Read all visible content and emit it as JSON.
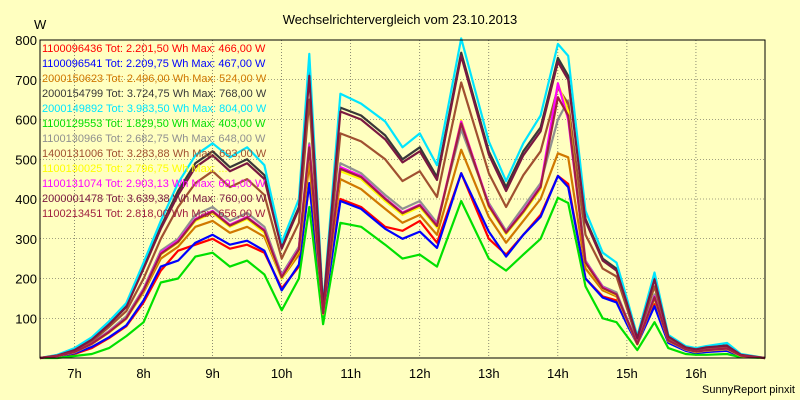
{
  "chart_data": {
    "type": "line",
    "title": "Wechselrichtervergleich vom 23.10.2013",
    "ylabel": "W",
    "ylim": [
      0,
      800
    ],
    "yticks": [
      100,
      200,
      300,
      400,
      500,
      600,
      700,
      800
    ],
    "xlim": [
      6.5,
      17.0
    ],
    "xticks": [
      7,
      8,
      9,
      10,
      11,
      12,
      13,
      14,
      15,
      16
    ],
    "xtick_labels": [
      "7h",
      "8h",
      "9h",
      "10h",
      "11h",
      "12h",
      "13h",
      "14h",
      "15h",
      "16h"
    ],
    "grid": true,
    "legend_position": "top-left",
    "footer": "SunnyReport pinxit",
    "x": [
      6.5,
      6.75,
      7.0,
      7.25,
      7.5,
      7.75,
      8.0,
      8.25,
      8.5,
      8.75,
      9.0,
      9.25,
      9.5,
      9.75,
      10.0,
      10.25,
      10.4,
      10.6,
      10.85,
      11.15,
      11.5,
      11.75,
      12.0,
      12.25,
      12.6,
      13.0,
      13.25,
      13.5,
      13.75,
      14.0,
      14.15,
      14.4,
      14.65,
      14.85,
      15.0,
      15.15,
      15.4,
      15.6,
      15.85,
      16.0,
      16.15,
      16.45,
      16.65,
      17.0
    ],
    "series": [
      {
        "name": "1100096436 Tot: 2.201,50 Wh Max: 466,00 W",
        "color": "#ff0000",
        "values": [
          0,
          3,
          10,
          25,
          50,
          80,
          140,
          220,
          270,
          285,
          300,
          275,
          285,
          265,
          175,
          230,
          440,
          110,
          400,
          380,
          330,
          320,
          345,
          290,
          465,
          300,
          260,
          310,
          360,
          458,
          438,
          200,
          155,
          145,
          90,
          40,
          135,
          40,
          20,
          15,
          18,
          20,
          5,
          0
        ]
      },
      {
        "name": "1100096541 Tot: 2.209,75 Wh Max: 467,00 W",
        "color": "#0000ff",
        "values": [
          0,
          4,
          12,
          28,
          52,
          82,
          145,
          230,
          245,
          290,
          310,
          285,
          295,
          270,
          170,
          235,
          440,
          105,
          395,
          375,
          325,
          300,
          318,
          277,
          465,
          318,
          255,
          310,
          355,
          458,
          430,
          200,
          152,
          140,
          85,
          35,
          130,
          38,
          18,
          12,
          15,
          18,
          4,
          0
        ]
      },
      {
        "name": "2000150623 Tot: 2.496,00 Wh Max: 524,00 W",
        "color": "#d07800",
        "values": [
          0,
          5,
          15,
          35,
          65,
          100,
          165,
          250,
          280,
          330,
          345,
          315,
          330,
          305,
          200,
          260,
          490,
          110,
          450,
          425,
          375,
          340,
          360,
          310,
          524,
          355,
          290,
          345,
          400,
          515,
          505,
          225,
          170,
          155,
          95,
          35,
          150,
          42,
          22,
          15,
          18,
          22,
          5,
          0
        ]
      },
      {
        "name": "2000154799 Tot: 3.724,75 Wh Max: 768,00 W",
        "color": "#383838",
        "values": [
          0,
          6,
          20,
          48,
          85,
          130,
          230,
          330,
          420,
          490,
          520,
          480,
          500,
          460,
          280,
          380,
          720,
          125,
          630,
          610,
          560,
          500,
          530,
          455,
          768,
          520,
          430,
          520,
          580,
          755,
          710,
          350,
          250,
          225,
          140,
          50,
          200,
          55,
          28,
          22,
          28,
          32,
          8,
          0
        ]
      },
      {
        "name": "2000149892 Tot: 3.983,50 Wh Max: 804,00 W",
        "color": "#00e5ff",
        "values": [
          0,
          8,
          25,
          52,
          92,
          138,
          240,
          345,
          440,
          510,
          540,
          505,
          530,
          485,
          290,
          400,
          765,
          130,
          665,
          640,
          595,
          530,
          565,
          485,
          804,
          545,
          445,
          540,
          610,
          790,
          760,
          370,
          265,
          240,
          150,
          55,
          215,
          58,
          30,
          25,
          30,
          38,
          10,
          0
        ]
      },
      {
        "name": "1100129553 Tot: 1.829,50 Wh Max: 403,00 W",
        "color": "#00e000",
        "values": [
          0,
          0,
          5,
          10,
          25,
          55,
          90,
          190,
          200,
          255,
          265,
          230,
          245,
          210,
          120,
          200,
          380,
          85,
          340,
          330,
          285,
          250,
          260,
          230,
          395,
          250,
          220,
          260,
          300,
          403,
          390,
          180,
          100,
          90,
          55,
          20,
          90,
          25,
          10,
          8,
          8,
          10,
          2,
          0
        ]
      },
      {
        "name": "1100130966 Tot: 2.682,75 Wh Max: 648,00 W",
        "color": "#909090",
        "values": [
          0,
          5,
          15,
          38,
          68,
          105,
          175,
          270,
          300,
          360,
          380,
          345,
          365,
          330,
          210,
          280,
          540,
          115,
          490,
          465,
          410,
          375,
          395,
          340,
          575,
          390,
          320,
          380,
          440,
          600,
          648,
          245,
          180,
          165,
          100,
          38,
          160,
          45,
          22,
          16,
          20,
          24,
          6,
          0
        ]
      },
      {
        "name": "1400131006 Tot: 3.283,88 Wh Max: 693,00 W",
        "color": "#a05030",
        "values": [
          0,
          6,
          18,
          42,
          78,
          118,
          200,
          300,
          380,
          440,
          470,
          430,
          450,
          410,
          250,
          340,
          650,
          120,
          565,
          545,
          500,
          445,
          470,
          405,
          693,
          465,
          380,
          460,
          520,
          680,
          640,
          310,
          225,
          205,
          125,
          45,
          180,
          50,
          25,
          20,
          25,
          28,
          7,
          0
        ]
      },
      {
        "name": "1100130025 Tot: 2.796,75 Wh Max: ...",
        "color": "#ffff00",
        "values": [
          0,
          5,
          14,
          35,
          64,
          98,
          168,
          260,
          290,
          345,
          365,
          330,
          350,
          315,
          200,
          270,
          525,
          110,
          470,
          450,
          395,
          360,
          380,
          328,
          598,
          380,
          312,
          365,
          425,
          690,
          620,
          238,
          175,
          158,
          95,
          34,
          152,
          43,
          21,
          15,
          19,
          23,
          5,
          0
        ]
      },
      {
        "name": "1100131074 Tot: 2.903,13 Wh Max: 691,00 W",
        "color": "#ff00ff",
        "values": [
          0,
          5,
          15,
          36,
          66,
          100,
          172,
          265,
          295,
          350,
          370,
          335,
          355,
          322,
          205,
          275,
          535,
          112,
          480,
          458,
          402,
          366,
          386,
          334,
          595,
          385,
          316,
          370,
          432,
          691,
          600,
          242,
          178,
          160,
          98,
          36,
          155,
          44,
          22,
          16,
          20,
          24,
          6,
          0
        ]
      },
      {
        "name": "2000001478 Tot: 3.639,38 Wh Max: 760,00 W",
        "color": "#7a1840",
        "values": [
          0,
          6,
          20,
          46,
          84,
          128,
          225,
          325,
          410,
          480,
          510,
          470,
          490,
          450,
          275,
          375,
          710,
          125,
          620,
          600,
          550,
          492,
          520,
          448,
          760,
          512,
          420,
          510,
          570,
          745,
          700,
          345,
          245,
          220,
          138,
          50,
          198,
          54,
          27,
          22,
          27,
          31,
          8,
          0
        ]
      },
      {
        "name": "1100213451 Tot: 2.818,00 Wh Max: 656,00 W",
        "color": "#a02040",
        "values": [
          0,
          5,
          15,
          36,
          65,
          100,
          170,
          262,
          292,
          348,
          368,
          333,
          353,
          320,
          203,
          273,
          530,
          112,
          476,
          455,
          400,
          364,
          384,
          332,
          590,
          383,
          315,
          368,
          430,
          656,
          610,
          240,
          176,
          160,
          97,
          35,
          153,
          44,
          22,
          16,
          20,
          24,
          6,
          0
        ]
      }
    ]
  }
}
